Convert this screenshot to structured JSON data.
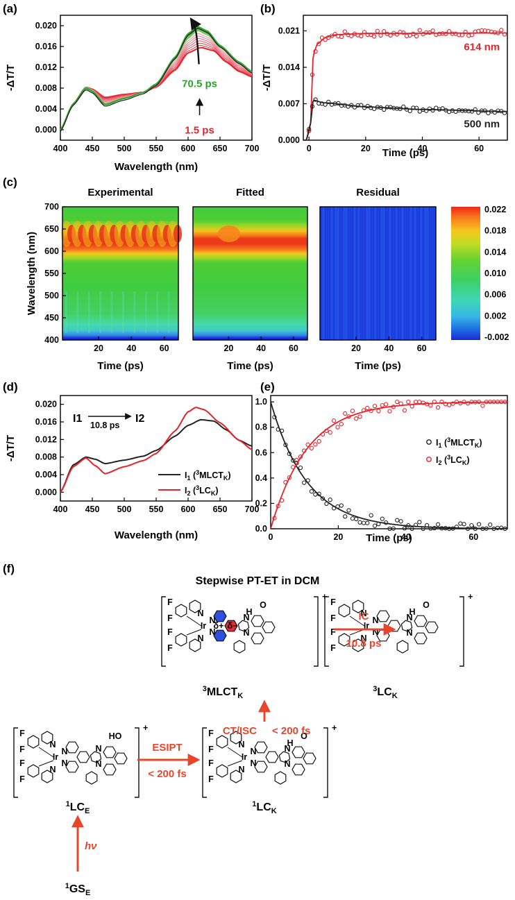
{
  "panels": {
    "a": "(a)",
    "b": "(b)",
    "c": "(c)",
    "d": "(d)",
    "e": "(e)",
    "f": "(f)"
  },
  "axes": {
    "dTT": "-ΔT/T",
    "wavelength": "Wavelength (nm)",
    "time": "Time (ps)",
    "wavelength_c": "Wavelength (nm)"
  },
  "colors": {
    "red": "#e8212b",
    "green": "#2ea12e",
    "dark": "#222222",
    "scheme_orange": "#e8452a"
  },
  "chart_data": [
    {
      "id": "a",
      "type": "line",
      "xlabel": "Wavelength (nm)",
      "ylabel": "-ΔT/T",
      "xlim": [
        400,
        700
      ],
      "ylim": [
        -0.002,
        0.022
      ],
      "xticks": [
        400,
        450,
        500,
        550,
        600,
        650,
        700
      ],
      "yticks": [
        0.0,
        0.004,
        0.008,
        0.012,
        0.016,
        0.02
      ],
      "ytick_labels": [
        "0.000",
        "0.004",
        "0.008",
        "0.012",
        "0.016",
        "0.020"
      ],
      "annotations": [
        {
          "text": "70.5 ps",
          "color": "green"
        },
        {
          "text": "1.5 ps",
          "color": "red"
        }
      ],
      "series": [
        {
          "values": [
            [
              400,
              0
            ],
            [
              420,
              0.005
            ],
            [
              440,
              0.0082
            ],
            [
              450,
              0.0078
            ],
            [
              470,
              0.0062
            ],
            [
              500,
              0.0068
            ],
            [
              530,
              0.0072
            ],
            [
              550,
              0.0082
            ],
            [
              580,
              0.0115
            ],
            [
              600,
              0.0148
            ],
            [
              620,
              0.0158
            ],
            [
              640,
              0.0152
            ],
            [
              660,
              0.013
            ],
            [
              680,
              0.0112
            ],
            [
              700,
              0.0102
            ]
          ]
        },
        {
          "values": [
            [
              400,
              0
            ],
            [
              420,
              0.005
            ],
            [
              440,
              0.0082
            ],
            [
              450,
              0.0076
            ],
            [
              470,
              0.005
            ],
            [
              500,
              0.0062
            ],
            [
              530,
              0.0072
            ],
            [
              550,
              0.0086
            ],
            [
              580,
              0.0135
            ],
            [
              600,
              0.0175
            ],
            [
              615,
              0.019
            ],
            [
              630,
              0.0182
            ],
            [
              650,
              0.0158
            ],
            [
              680,
              0.0128
            ],
            [
              700,
              0.011
            ]
          ]
        },
        {
          "values": [
            [
              400,
              0
            ],
            [
              420,
              0.005
            ],
            [
              440,
              0.008
            ],
            [
              450,
              0.0074
            ],
            [
              470,
              0.0048
            ],
            [
              500,
              0.006
            ],
            [
              530,
              0.0072
            ],
            [
              550,
              0.0088
            ],
            [
              580,
              0.014
            ],
            [
              600,
              0.0185
            ],
            [
              615,
              0.0198
            ],
            [
              630,
              0.019
            ],
            [
              650,
              0.0162
            ],
            [
              680,
              0.013
            ],
            [
              700,
              0.0112
            ]
          ]
        }
      ]
    },
    {
      "id": "b",
      "type": "scatter",
      "xlabel": "Time (ps)",
      "ylabel": "-ΔT/T",
      "xlim": [
        -2,
        70
      ],
      "ylim": [
        0,
        0.024
      ],
      "xticks": [
        0,
        20,
        40,
        60
      ],
      "yticks": [
        0.0,
        0.007,
        0.014,
        0.021
      ],
      "ytick_labels": [
        "0.000",
        "0.007",
        "0.014",
        "0.021"
      ],
      "series": [
        {
          "name": "614 nm",
          "fit": [
            [
              -1,
              0
            ],
            [
              0.5,
              0.0025
            ],
            [
              1.5,
              0.0165
            ],
            [
              3,
              0.0185
            ],
            [
              6,
              0.0198
            ],
            [
              10,
              0.0203
            ],
            [
              20,
              0.0205
            ],
            [
              70,
              0.0206
            ]
          ],
          "points_start": 0.0175,
          "level": 0.0206,
          "noise": 0.0006
        },
        {
          "name": "500 nm",
          "fit": [
            [
              -1,
              0
            ],
            [
              0.5,
              0.003
            ],
            [
              1.5,
              0.0077
            ],
            [
              5,
              0.0072
            ],
            [
              20,
              0.0064
            ],
            [
              40,
              0.0059
            ],
            [
              70,
              0.0055
            ]
          ],
          "points_start": 0.0078,
          "level": 0.0058,
          "noise": 0.0004
        }
      ]
    },
    {
      "id": "c",
      "type": "heatmap",
      "titles": [
        "Experimental",
        "Fitted",
        "Residual"
      ],
      "ylabel": "Wavelength (nm)",
      "xlabel": "Time (ps)",
      "yticks": [
        400,
        450,
        500,
        550,
        600,
        650,
        700
      ],
      "xticks": [
        20,
        40,
        60
      ],
      "colorbar": [
        0.022,
        0.018,
        0.014,
        0.01,
        0.006,
        0.002,
        -0.002
      ],
      "colorbar_labels": [
        "0.022",
        "0.018",
        "0.014",
        "0.010",
        "0.006",
        "0.002",
        "-0.002"
      ],
      "clim": [
        -0.002,
        0.022
      ]
    },
    {
      "id": "d",
      "type": "line",
      "xlabel": "Wavelength (nm)",
      "ylabel": "-ΔT/T",
      "xlim": [
        400,
        700
      ],
      "ylim": [
        -0.002,
        0.022
      ],
      "xticks": [
        400,
        450,
        500,
        550,
        600,
        650,
        700
      ],
      "yticks": [
        0.0,
        0.004,
        0.008,
        0.012,
        0.016,
        0.02
      ],
      "ytick_labels": [
        "0.000",
        "0.004",
        "0.008",
        "0.012",
        "0.016",
        "0.020"
      ],
      "legend": "bottom-right",
      "series": [
        {
          "name": "I1 (3MLCTK)",
          "color": "#222222",
          "values": [
            [
              400,
              0
            ],
            [
              420,
              0.0062
            ],
            [
              440,
              0.008
            ],
            [
              455,
              0.0075
            ],
            [
              470,
              0.0065
            ],
            [
              500,
              0.0073
            ],
            [
              530,
              0.0082
            ],
            [
              550,
              0.0095
            ],
            [
              580,
              0.0128
            ],
            [
              600,
              0.0152
            ],
            [
              620,
              0.0165
            ],
            [
              640,
              0.0162
            ],
            [
              660,
              0.0142
            ],
            [
              680,
              0.0118
            ],
            [
              700,
              0.0105
            ]
          ]
        },
        {
          "name": "I2 (3LCK)",
          "color": "#e8212b",
          "values": [
            [
              400,
              0
            ],
            [
              420,
              0.0058
            ],
            [
              440,
              0.0078
            ],
            [
              455,
              0.006
            ],
            [
              470,
              0.0042
            ],
            [
              500,
              0.0058
            ],
            [
              530,
              0.0072
            ],
            [
              550,
              0.0088
            ],
            [
              580,
              0.014
            ],
            [
              600,
              0.0183
            ],
            [
              612,
              0.0193
            ],
            [
              625,
              0.0188
            ],
            [
              650,
              0.0158
            ],
            [
              680,
              0.0118
            ],
            [
              700,
              0.0097
            ]
          ]
        }
      ]
    },
    {
      "id": "e",
      "type": "scatter",
      "xlabel": "Time (ps)",
      "ylim": [
        0,
        1.05
      ],
      "xlim": [
        0,
        70
      ],
      "xticks": [
        0,
        20,
        40,
        60
      ],
      "yticks": [
        0.0,
        0.2,
        0.4,
        0.6,
        0.8,
        1.0
      ],
      "ytick_labels": [
        "0.0",
        "0.2",
        "0.4",
        "0.6",
        "0.8",
        "1.0"
      ],
      "tau_ps": 10.8,
      "legend": "right",
      "series": [
        {
          "name": "I1 (3MLCTK)",
          "color": "#222222",
          "model": "decay"
        },
        {
          "name": "I2 (3LCK)",
          "color": "#e8212b",
          "model": "rise"
        }
      ]
    }
  ],
  "d_inset": {
    "from": "I1",
    "to": "I2",
    "time": "10.8 ps"
  },
  "legend_d": {
    "s1": "I1 (3MLCTK)",
    "s2": "I2 (3LCK)"
  },
  "scheme": {
    "title": "Stepwise PT-ET in DCM",
    "states": {
      "gs": "1GSE",
      "lce": "1LCE",
      "lck": "1LCK",
      "mlct": "3MLCTK",
      "lc3": "3LCK"
    },
    "arrows": {
      "hv": "hν",
      "esipt": "ESIPT",
      "esipt_time": "< 200 fs",
      "ctisc": "CT/ISC",
      "ctisc_time": "< 200 fs",
      "ic": "IC",
      "ic_time": "10.8 ps"
    },
    "charge": "+",
    "atoms": {
      "F": "F",
      "N": "N",
      "Ir": "Ir",
      "O": "O",
      "HO": "HO",
      "H": "H",
      "dplus": "δ+",
      "dminus": "δ−"
    }
  }
}
